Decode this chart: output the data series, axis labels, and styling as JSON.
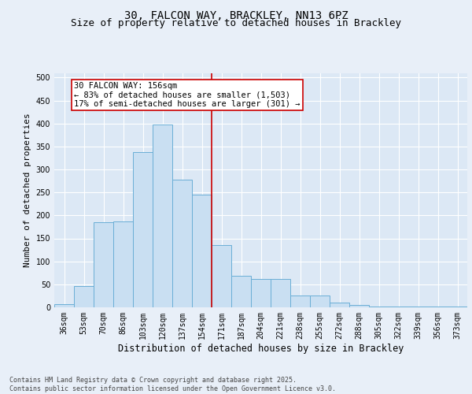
{
  "title": "30, FALCON WAY, BRACKLEY, NN13 6PZ",
  "subtitle": "Size of property relative to detached houses in Brackley",
  "xlabel": "Distribution of detached houses by size in Brackley",
  "ylabel": "Number of detached properties",
  "categories": [
    "36sqm",
    "53sqm",
    "70sqm",
    "86sqm",
    "103sqm",
    "120sqm",
    "137sqm",
    "154sqm",
    "171sqm",
    "187sqm",
    "204sqm",
    "221sqm",
    "238sqm",
    "255sqm",
    "272sqm",
    "288sqm",
    "305sqm",
    "322sqm",
    "339sqm",
    "356sqm",
    "373sqm"
  ],
  "values": [
    7,
    46,
    185,
    187,
    338,
    397,
    278,
    245,
    135,
    68,
    62,
    62,
    25,
    25,
    10,
    5,
    2,
    1,
    1,
    2,
    1
  ],
  "bar_color": "#c9dff2",
  "bar_edge_color": "#6aaed6",
  "vline_x_index": 7.5,
  "vline_color": "#cc0000",
  "annotation_text": "30 FALCON WAY: 156sqm\n← 83% of detached houses are smaller (1,503)\n17% of semi-detached houses are larger (301) →",
  "annotation_box_color": "#ffffff",
  "annotation_box_edge_color": "#cc0000",
  "ylim": [
    0,
    510
  ],
  "yticks": [
    0,
    50,
    100,
    150,
    200,
    250,
    300,
    350,
    400,
    450,
    500
  ],
  "background_color": "#e8eff8",
  "plot_bg_color": "#dce8f5",
  "grid_color": "#ffffff",
  "title_fontsize": 10,
  "subtitle_fontsize": 9,
  "xlabel_fontsize": 8.5,
  "ylabel_fontsize": 8,
  "tick_fontsize": 7,
  "annotation_fontsize": 7.5,
  "footer": "Contains HM Land Registry data © Crown copyright and database right 2025.\nContains public sector information licensed under the Open Government Licence v3.0."
}
